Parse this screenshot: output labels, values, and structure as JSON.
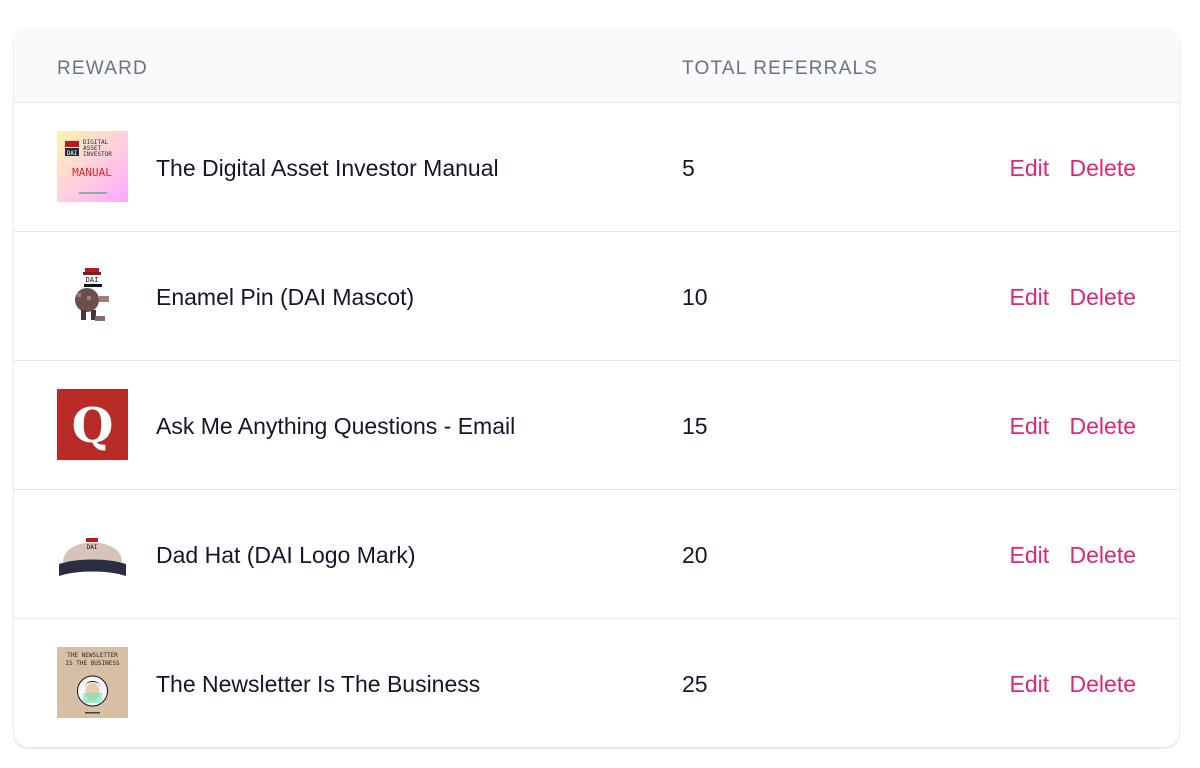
{
  "table": {
    "headers": {
      "reward": "REWARD",
      "total": "TOTAL REFERRALS"
    },
    "rows": [
      {
        "name": "The Digital Asset Investor Manual",
        "count": "5",
        "icon": "manual-cover-icon",
        "thumb_text": [
          "DIGITAL",
          "ASSET",
          "INVESTOR",
          "MANUAL",
          "DAI"
        ]
      },
      {
        "name": "Enamel Pin (DAI Mascot)",
        "count": "10",
        "icon": "mascot-pin-icon",
        "thumb_text": [
          "DAI"
        ]
      },
      {
        "name": "Ask Me Anything Questions - Email",
        "count": "15",
        "icon": "quora-q-icon",
        "thumb_text": [
          "Q"
        ]
      },
      {
        "name": "Dad Hat (DAI Logo Mark)",
        "count": "20",
        "icon": "dad-hat-icon",
        "thumb_text": [
          "DAI"
        ]
      },
      {
        "name": "The Newsletter Is The Business",
        "count": "25",
        "icon": "book-cover-icon",
        "thumb_text": [
          "THE NEWSLETTER",
          "IS THE BUSINESS"
        ]
      }
    ],
    "edit_label": "Edit",
    "delete_label": "Delete"
  },
  "colors": {
    "action": "#db2777",
    "header_bg": "#f9fafb",
    "quora_red": "#b92b27"
  }
}
